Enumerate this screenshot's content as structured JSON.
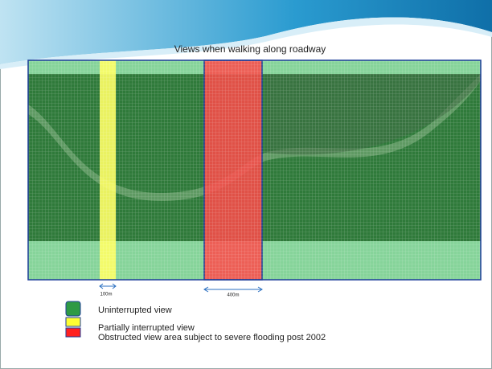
{
  "header": {
    "title": "Views when walking along roadway"
  },
  "scale": {
    "small": "100m",
    "large": "400m"
  },
  "legend": {
    "items": [
      {
        "label": "Uninterrupted view"
      },
      {
        "label": "Partially interrupted view"
      },
      {
        "label": "Obstructed view area subject to severe flooding post 2002"
      }
    ]
  }
}
